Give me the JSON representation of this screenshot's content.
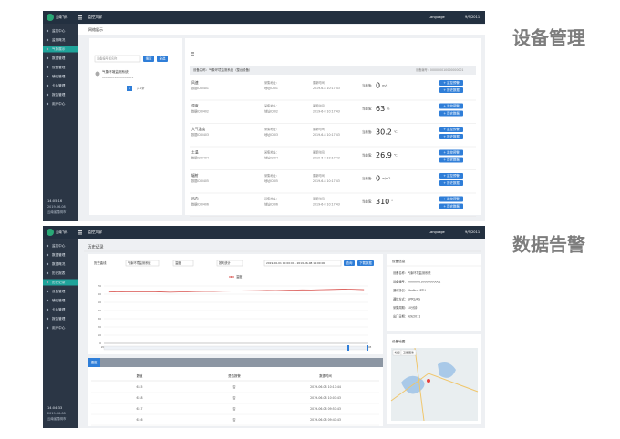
{
  "labels": [
    "设备管理",
    "数据告警"
  ],
  "screen1": {
    "topbar": {
      "logo": "云南飞科",
      "menu": "监控大屏",
      "language": "Language",
      "date": "9/9/2011"
    },
    "sidebar": {
      "items": [
        {
          "label": "监控中心",
          "active": false
        },
        {
          "label": "监测概况",
          "active": false
        },
        {
          "label": "气象展示",
          "active": true
        },
        {
          "label": "数据管理",
          "active": false
        },
        {
          "label": "设备管理",
          "active": false
        },
        {
          "label": "辅位管理",
          "active": false
        },
        {
          "label": "卡片管理",
          "active": false
        },
        {
          "label": "报告管理",
          "active": false
        },
        {
          "label": "用户中心",
          "active": false
        }
      ],
      "time": "14:05:16",
      "date": "2019-06-08",
      "location": "云南省昆明市"
    },
    "breadcrumb": "网络展示",
    "search": {
      "placeholder": "设备编号或名称",
      "buttons": [
        "搜索",
        "全选"
      ]
    },
    "device_list": {
      "name": "气象环境监测系统",
      "id": "000000010000000001",
      "page": "1",
      "total": "共1条"
    },
    "panel": {
      "device_name": "设备名称：气象环境监测系统（整台设备）",
      "device_id": "设备编号：000000010000000001",
      "addr_label": "采集地址:",
      "time_label": "更新时间:",
      "value_label": "当前值:",
      "buttons": [
        "+ 监控预警",
        "+ 历史数据"
      ],
      "rows": [
        {
          "name": "风速",
          "data_id": "数据ID:0401",
          "addr": "地址ID:01",
          "time": "2019-6-8 10:17:43",
          "value": "0",
          "unit": "m/s"
        },
        {
          "name": "湿度",
          "data_id": "数据ID:0402",
          "addr": "地址ID:02",
          "time": "2019-6-8 10:17:43",
          "value": "63",
          "unit": "%"
        },
        {
          "name": "大气温度",
          "data_id": "数据ID:0403",
          "addr": "地址ID:03",
          "time": "2019-6-8 10:17:43",
          "value": "30.2",
          "unit": "℃"
        },
        {
          "name": "土温",
          "data_id": "数据ID:0404",
          "addr": "地址ID:04",
          "time": "2019-6-8 10:17:43",
          "value": "26.9",
          "unit": "℃"
        },
        {
          "name": "辐射",
          "data_id": "数据ID:0405",
          "addr": "地址ID:05",
          "time": "2019-6-8 10:17:43",
          "value": "0",
          "unit": "w/m2"
        },
        {
          "name": "风向",
          "data_id": "数据ID:0406",
          "addr": "地址ID:06",
          "time": "2019-6-8 10:17:43",
          "value": "310",
          "unit": "°"
        }
      ]
    }
  },
  "screen2": {
    "topbar": {
      "logo": "云南飞科",
      "menu": "监控大屏",
      "language": "Language",
      "date": "9/9/2011"
    },
    "sidebar": {
      "items": [
        {
          "label": "监控中心",
          "active": false
        },
        {
          "label": "数据管理",
          "active": false
        },
        {
          "label": "数据概况",
          "active": false
        },
        {
          "label": "历史报表",
          "active": false
        },
        {
          "label": "历史记录",
          "active": true
        },
        {
          "label": "设备管理",
          "active": false
        },
        {
          "label": "辅位管理",
          "active": false
        },
        {
          "label": "卡片管理",
          "active": false
        },
        {
          "label": "报告管理",
          "active": false
        },
        {
          "label": "用户中心",
          "active": false
        }
      ],
      "time": "14:04:33",
      "date": "2019-06-08",
      "location": "云南省昆明市"
    },
    "title": "历史记录",
    "filter": {
      "label": "历史曲线",
      "device": "气象环境监测系统",
      "field": "温度",
      "period": "按天统计",
      "range": "2019-06-01 00:00:00 - 2019-06-08 14:00:00",
      "buttons": [
        "查询",
        "下载数据"
      ]
    },
    "chart_data": {
      "type": "line",
      "legend": "温度",
      "color": "#d9534f",
      "ylim": [
        0,
        70
      ],
      "yticks": [
        0,
        10,
        20,
        30,
        40,
        50,
        60,
        70
      ],
      "grid": true,
      "categories": [
        "2019-06-01",
        null,
        null,
        null,
        null,
        null,
        null,
        "2019-06-03",
        null,
        null,
        null,
        null,
        null,
        null,
        "2019-06-05",
        null,
        null,
        null,
        null,
        null,
        null,
        null,
        "2019-06-07",
        null,
        null,
        null,
        null,
        null,
        null,
        "2019-06-08"
      ],
      "values": [
        62.5,
        63,
        62.8,
        62.6,
        62.9,
        63.1,
        62.7,
        62.4,
        62.6,
        62.9,
        63.2,
        63.4,
        63.3,
        63.6,
        63.8,
        64,
        64.1,
        64.3,
        64.5,
        64.4,
        64.7,
        65,
        65.2,
        65.1,
        65.4,
        65.6,
        65.9,
        66.2,
        65.8,
        65.5
      ]
    },
    "table": {
      "tab": "温度",
      "headers": [
        "数值",
        "是否报警",
        "数据时间"
      ],
      "rows": [
        [
          "63.5",
          "否",
          "2019-06-08 10:17:44"
        ],
        [
          "62.8",
          "否",
          "2019-06-08 10:07:43"
        ],
        [
          "62.7",
          "否",
          "2019-06-08 09:57:43"
        ],
        [
          "62.6",
          "否",
          "2019-06-08 09:47:43"
        ]
      ]
    },
    "info": {
      "title": "设备信息",
      "rows": [
        "设备名称：气象环境监测系统",
        "设备编号：000000010000000001",
        "通讯协议：Modbus-RTU",
        "通信方式：GPRS/4G",
        "采集周期：10分钟",
        "出厂日期：9/9/2011"
      ]
    },
    "map": {
      "title": "设备地图",
      "buttons": [
        "地图",
        "卫星图像"
      ]
    }
  }
}
